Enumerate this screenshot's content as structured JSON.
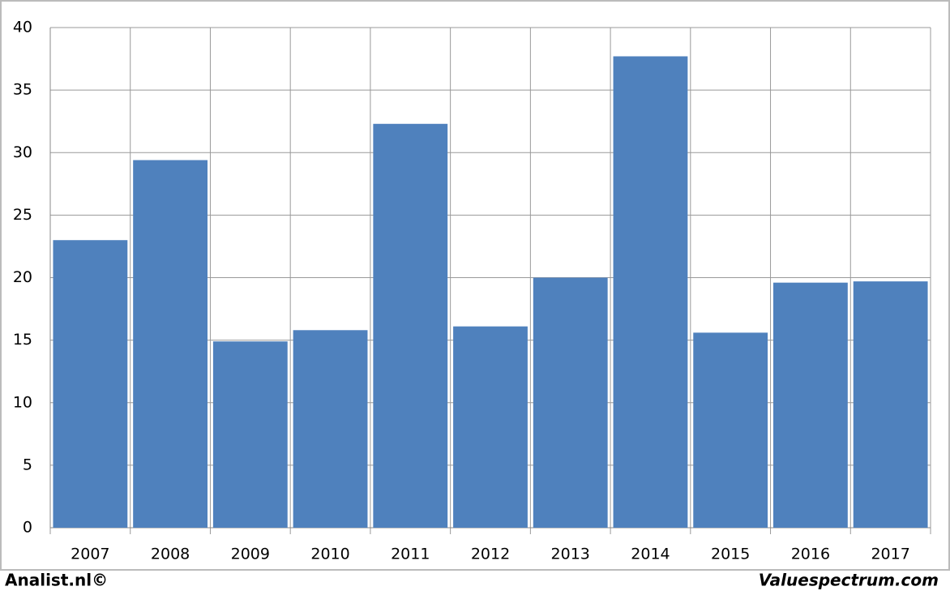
{
  "chart_data": {
    "type": "bar",
    "categories": [
      "2007",
      "2008",
      "2009",
      "2010",
      "2011",
      "2012",
      "2013",
      "2014",
      "2015",
      "2016",
      "2017"
    ],
    "values": [
      23.0,
      29.4,
      14.9,
      15.8,
      32.3,
      16.1,
      20.0,
      37.7,
      15.6,
      19.6,
      19.7
    ],
    "color": "#4f81bd",
    "ylim": [
      0,
      40
    ],
    "yticks": [
      0,
      5,
      10,
      15,
      20,
      25,
      30,
      35,
      40
    ],
    "grid": true,
    "footer_left": "Analist.nl©",
    "footer_right": "Valuespectrum.com"
  }
}
